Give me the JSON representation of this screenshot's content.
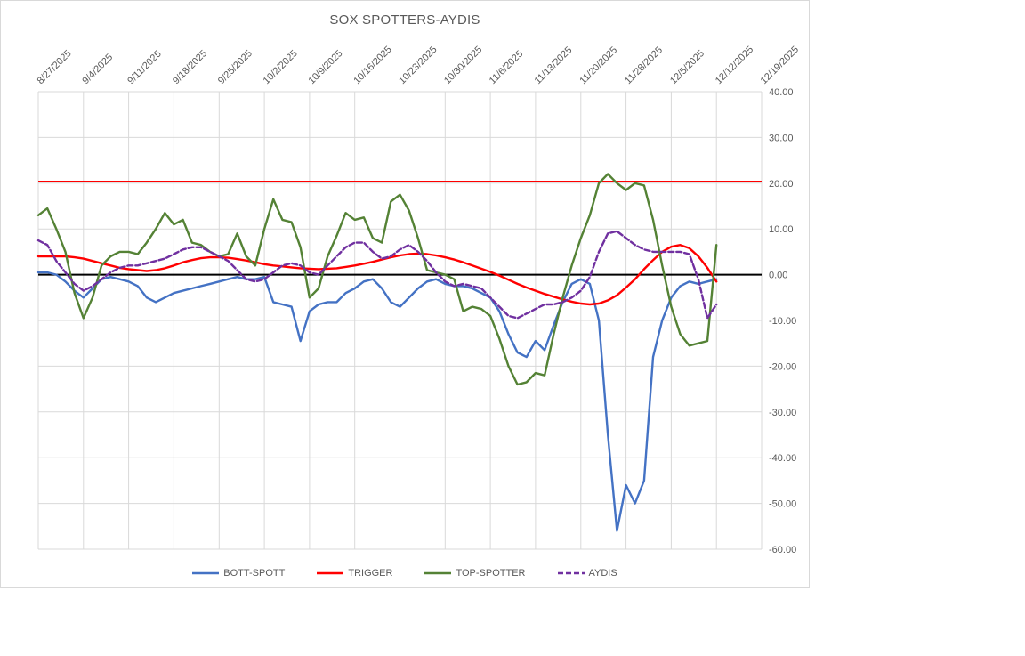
{
  "chart_data": {
    "type": "line",
    "title": "SOX SPOTTERS-AYDIS",
    "legend_position": "bottom",
    "grid": true,
    "x_axis": {
      "position": "top",
      "rotation_deg": 45,
      "label_every": 5,
      "total_categories": 81,
      "tick_labels": [
        "8/27/2025",
        "9/4/2025",
        "9/11/2025",
        "9/18/2025",
        "9/25/2025",
        "10/2/2025",
        "10/9/2025",
        "10/16/2025",
        "10/23/2025",
        "10/30/2025",
        "11/6/2025",
        "11/13/2025",
        "11/20/2025",
        "11/28/2025",
        "12/5/2025",
        "12/12/2025",
        "12/19/2025"
      ]
    },
    "y_axis": {
      "position": "right",
      "min": -60,
      "max": 40,
      "step": 10,
      "format": "0.00",
      "tick_labels": [
        "40.00",
        "30.00",
        "20.00",
        "10.00",
        "0.00",
        "-10.00",
        "-20.00",
        "-30.00",
        "-40.00",
        "-50.00",
        "-60.00"
      ]
    },
    "categories": [
      "8/27/2025",
      "8/28/2025",
      "8/29/2025",
      "9/2/2025",
      "9/3/2025",
      "9/4/2025",
      "9/5/2025",
      "9/8/2025",
      "9/9/2025",
      "9/10/2025",
      "9/11/2025",
      "9/12/2025",
      "9/15/2025",
      "9/16/2025",
      "9/17/2025",
      "9/18/2025",
      "9/19/2025",
      "9/22/2025",
      "9/23/2025",
      "9/24/2025",
      "9/25/2025",
      "9/26/2025",
      "9/29/2025",
      "9/30/2025",
      "10/1/2025",
      "10/2/2025",
      "10/3/2025",
      "10/6/2025",
      "10/7/2025",
      "10/8/2025",
      "10/9/2025",
      "10/10/2025",
      "10/13/2025",
      "10/14/2025",
      "10/15/2025",
      "10/16/2025",
      "10/17/2025",
      "10/20/2025",
      "10/21/2025",
      "10/22/2025",
      "10/23/2025",
      "10/24/2025",
      "10/27/2025",
      "10/28/2025",
      "10/29/2025",
      "10/30/2025",
      "10/31/2025",
      "11/3/2025",
      "11/4/2025",
      "11/5/2025",
      "11/6/2025",
      "11/7/2025",
      "11/10/2025",
      "11/11/2025",
      "11/12/2025",
      "11/13/2025",
      "11/14/2025",
      "11/17/2025",
      "11/18/2025",
      "11/19/2025",
      "11/20/2025",
      "11/21/2025",
      "11/24/2025",
      "11/25/2025",
      "11/26/2025",
      "11/28/2025",
      "12/1/2025",
      "12/2/2025",
      "12/3/2025",
      "12/4/2025",
      "12/5/2025",
      "12/8/2025",
      "12/9/2025",
      "12/10/2025",
      "12/11/2025",
      "12/12/2025"
    ],
    "series": [
      {
        "name": "BOTT-SPOTT",
        "color": "#4472C4",
        "dash": null,
        "width": 2.4,
        "values": [
          0.5,
          0.5,
          0,
          -1.5,
          -3.5,
          -5,
          -3,
          -1,
          -0.5,
          -1,
          -1.5,
          -2.5,
          -5,
          -6,
          -5,
          -4,
          -3.5,
          -3,
          -2.5,
          -2,
          -1.5,
          -1,
          -0.5,
          -1,
          -1,
          -0.5,
          -6,
          -6.5,
          -7,
          -14.5,
          -8,
          -6.5,
          -6,
          -6,
          -4,
          -3,
          -1.5,
          -1,
          -3,
          -6,
          -7,
          -5,
          -3,
          -1.5,
          -1,
          -2,
          -2.5,
          -2.5,
          -3,
          -4,
          -5,
          -8,
          -13,
          -17,
          -18,
          -14.5,
          -16.5,
          -11,
          -6,
          -2,
          -1,
          -2,
          -10,
          -35,
          -56,
          -46,
          -50,
          -45,
          -18,
          -10,
          -5,
          -2.5,
          -1.5,
          -2,
          -1.5,
          -1
        ]
      },
      {
        "name": "TRIGGER",
        "color": "#FF0000",
        "dash": null,
        "width": 2.4,
        "values": [
          4,
          4,
          4,
          4,
          3.8,
          3.5,
          3,
          2.5,
          2,
          1.5,
          1.2,
          1,
          0.8,
          1,
          1.4,
          2,
          2.7,
          3.2,
          3.6,
          3.8,
          3.8,
          3.7,
          3.4,
          3.1,
          2.7,
          2.3,
          2,
          1.8,
          1.6,
          1.4,
          1.3,
          1.2,
          1.3,
          1.4,
          1.7,
          2,
          2.4,
          2.8,
          3.3,
          3.8,
          4.2,
          4.5,
          4.6,
          4.5,
          4.2,
          3.8,
          3.3,
          2.7,
          2,
          1.3,
          0.6,
          -0.2,
          -1.1,
          -2,
          -2.8,
          -3.5,
          -4.2,
          -4.8,
          -5.4,
          -5.9,
          -6.3,
          -6.5,
          -6.3,
          -5.6,
          -4.5,
          -2.8,
          -1,
          1.2,
          3.2,
          5,
          6.1,
          6.5,
          5.8,
          4,
          1.5,
          -1.5
        ]
      },
      {
        "name": "TOP-SPOTTER",
        "color": "#548235",
        "dash": null,
        "width": 2.4,
        "values": [
          13,
          14.5,
          10,
          5,
          -4,
          -9.5,
          -5,
          2,
          4,
          5,
          5,
          4.5,
          7,
          10,
          13.5,
          11,
          12,
          7,
          6.5,
          5,
          4,
          4.5,
          9,
          4,
          2,
          10,
          16.5,
          12,
          11.5,
          6,
          -5,
          -3,
          4,
          8.5,
          13.5,
          12,
          12.5,
          8,
          7,
          16,
          17.5,
          14,
          8,
          1,
          0.5,
          0,
          -1,
          -8,
          -7,
          -7.5,
          -9,
          -14,
          -20,
          -24,
          -23.5,
          -21.5,
          -22,
          -13,
          -5,
          2,
          8,
          13,
          20,
          22,
          20,
          18.5,
          20,
          19.5,
          12,
          2,
          -7,
          -13,
          -15.5,
          -15,
          -14.5,
          6.5
        ]
      },
      {
        "name": "AYDIS",
        "color": "#7030A0",
        "dash": "6,3",
        "width": 2.4,
        "values": [
          7.5,
          6.5,
          3,
          0.5,
          -2,
          -3.5,
          -2.5,
          -1,
          0.5,
          1.5,
          2,
          2,
          2.5,
          3,
          3.5,
          4.5,
          5.5,
          6,
          6,
          5,
          4,
          3,
          1,
          -1,
          -1.5,
          -1,
          0.5,
          2,
          2.5,
          2,
          0.5,
          0,
          2,
          4,
          6,
          7,
          7,
          5,
          3.5,
          4,
          5.5,
          6.5,
          5,
          3,
          0.5,
          -1.5,
          -2.5,
          -2,
          -2.5,
          -3,
          -5,
          -7,
          -9,
          -9.5,
          -8.5,
          -7.5,
          -6.5,
          -6.5,
          -6,
          -5,
          -3.5,
          -0.5,
          5,
          9,
          9.5,
          8,
          6.5,
          5.5,
          5,
          5,
          5,
          5,
          4.5,
          -1,
          -9.5,
          -6.5
        ]
      }
    ],
    "reference_lines": [
      {
        "name": "upper-threshold",
        "value": 20.4,
        "color": "#FF0000",
        "width": 1.5
      },
      {
        "name": "zero-axis",
        "value": 0,
        "color": "#000000",
        "width": 2
      }
    ],
    "style": {
      "gridline_color": "#D9D9D9",
      "tick_label_color": "#595959",
      "title_color": "#595959"
    }
  }
}
